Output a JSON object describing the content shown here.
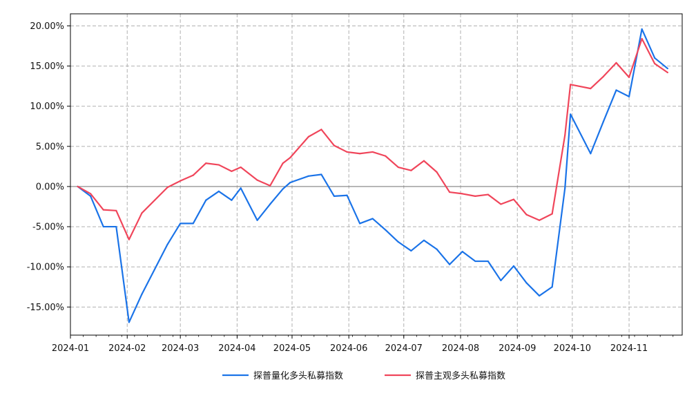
{
  "chart_data": {
    "type": "line",
    "title": "",
    "xlabel": "",
    "ylabel": "",
    "x_range": [
      "2024-01-01",
      "2024-11-30"
    ],
    "ylim": [
      -18.5,
      21.5
    ],
    "y_ticks": [
      20,
      15,
      10,
      5,
      0,
      -5,
      -10,
      -15
    ],
    "y_tick_labels": [
      "20.00%",
      "15.00%",
      "10.00%",
      "5.00%",
      "0.00%",
      "-5.00%",
      "-10.00%",
      "-15.00%"
    ],
    "x_ticks": [
      "2024-01-01",
      "2024-02-01",
      "2024-03-01",
      "2024-04-01",
      "2024-05-01",
      "2024-06-01",
      "2024-07-01",
      "2024-08-01",
      "2024-09-01",
      "2024-10-01",
      "2024-11-01"
    ],
    "x_tick_labels": [
      "2024-01",
      "2024-02",
      "2024-03",
      "2024-04",
      "2024-05",
      "2024-06",
      "2024-07",
      "2024-08",
      "2024-09",
      "2024-10",
      "2024-11"
    ],
    "grid": true,
    "zero_line": true,
    "legend_position": "bottom-center",
    "x": [
      "2024-01-05",
      "2024-01-12",
      "2024-01-19",
      "2024-01-26",
      "2024-02-02",
      "2024-02-09",
      "2024-02-23",
      "2024-03-01",
      "2024-03-08",
      "2024-03-15",
      "2024-03-22",
      "2024-03-29",
      "2024-04-03",
      "2024-04-12",
      "2024-04-19",
      "2024-04-26",
      "2024-04-30",
      "2024-05-10",
      "2024-05-17",
      "2024-05-24",
      "2024-05-31",
      "2024-06-07",
      "2024-06-14",
      "2024-06-21",
      "2024-06-28",
      "2024-07-05",
      "2024-07-12",
      "2024-07-19",
      "2024-07-26",
      "2024-08-02",
      "2024-08-09",
      "2024-08-16",
      "2024-08-23",
      "2024-08-30",
      "2024-09-06",
      "2024-09-13",
      "2024-09-20",
      "2024-09-27",
      "2024-09-30",
      "2024-10-11",
      "2024-10-18",
      "2024-10-25",
      "2024-11-01",
      "2024-11-08",
      "2024-11-15",
      "2024-11-22"
    ],
    "series": [
      {
        "name": "探普量化多头私募指数",
        "color": "#1a73e8",
        "values": [
          0.0,
          -1.2,
          -5.0,
          -5.0,
          -16.9,
          -13.4,
          -7.2,
          -4.6,
          -4.6,
          -1.7,
          -0.6,
          -1.7,
          -0.2,
          -4.2,
          -2.2,
          -0.3,
          0.5,
          1.3,
          1.5,
          -1.2,
          -1.1,
          -4.6,
          -4.0,
          -5.4,
          -6.9,
          -8.0,
          -6.7,
          -7.8,
          -9.7,
          -8.1,
          -9.3,
          -9.3,
          -11.7,
          -9.9,
          -12.0,
          -13.6,
          -12.5,
          -0.2,
          9.0,
          4.1,
          8.1,
          12.0,
          11.2,
          19.6,
          16.0,
          14.7
        ]
      },
      {
        "name": "探普主观多头私募指数",
        "color": "#f0455a",
        "values": [
          0.0,
          -0.9,
          -2.9,
          -3.0,
          -6.6,
          -3.3,
          -0.1,
          0.7,
          1.4,
          2.9,
          2.7,
          1.9,
          2.4,
          0.8,
          0.1,
          2.9,
          3.6,
          6.2,
          7.1,
          5.1,
          4.3,
          4.1,
          4.3,
          3.8,
          2.4,
          2.0,
          3.2,
          1.8,
          -0.7,
          -0.9,
          -1.2,
          -1.0,
          -2.2,
          -1.6,
          -3.5,
          -4.2,
          -3.4,
          6.4,
          12.7,
          12.2,
          13.7,
          15.4,
          13.6,
          18.4,
          15.3,
          14.2
        ]
      }
    ]
  }
}
